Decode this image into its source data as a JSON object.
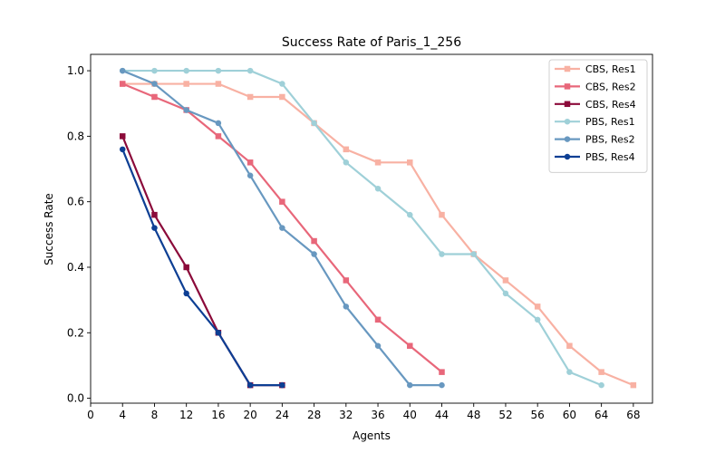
{
  "chart_data": {
    "type": "line",
    "title": "Success Rate of Paris_1_256",
    "xlabel": "Agents",
    "ylabel": "Success Rate",
    "xlim": [
      0,
      70.4
    ],
    "ylim": [
      -0.015,
      1.05
    ],
    "xticks": [
      0,
      4,
      8,
      12,
      16,
      20,
      24,
      28,
      32,
      36,
      40,
      44,
      48,
      52,
      56,
      60,
      64,
      68
    ],
    "yticks": [
      0.0,
      0.2,
      0.4,
      0.6,
      0.8,
      1.0
    ],
    "legend_position": "top-right",
    "grid": false,
    "series": [
      {
        "name": "CBS, Res1",
        "color": "#f8b1a3",
        "marker": "square",
        "x": [
          4,
          8,
          12,
          16,
          20,
          24,
          28,
          32,
          36,
          40,
          44,
          48,
          52,
          56,
          60,
          64,
          68
        ],
        "y": [
          0.96,
          0.96,
          0.96,
          0.96,
          0.92,
          0.92,
          0.84,
          0.76,
          0.72,
          0.72,
          0.56,
          0.44,
          0.36,
          0.28,
          0.16,
          0.08,
          0.04
        ]
      },
      {
        "name": "CBS, Res2",
        "color": "#e8677a",
        "marker": "square",
        "x": [
          4,
          8,
          12,
          16,
          20,
          24,
          28,
          32,
          36,
          40,
          44
        ],
        "y": [
          0.96,
          0.92,
          0.88,
          0.8,
          0.72,
          0.6,
          0.48,
          0.36,
          0.24,
          0.16,
          0.08
        ]
      },
      {
        "name": "CBS, Res4",
        "color": "#8b0a3a",
        "marker": "square",
        "x": [
          4,
          8,
          12,
          16,
          20,
          24
        ],
        "y": [
          0.8,
          0.56,
          0.4,
          0.2,
          0.04,
          0.04
        ]
      },
      {
        "name": "PBS, Res1",
        "color": "#9fd0d8",
        "marker": "circle",
        "x": [
          4,
          8,
          12,
          16,
          20,
          24,
          28,
          32,
          36,
          40,
          44,
          48,
          52,
          56,
          60,
          64
        ],
        "y": [
          1.0,
          1.0,
          1.0,
          1.0,
          1.0,
          0.96,
          0.84,
          0.72,
          0.64,
          0.56,
          0.44,
          0.44,
          0.32,
          0.24,
          0.08,
          0.04
        ]
      },
      {
        "name": "PBS, Res2",
        "color": "#6898c0",
        "marker": "circle",
        "x": [
          4,
          8,
          12,
          16,
          20,
          24,
          28,
          32,
          36,
          40,
          44
        ],
        "y": [
          1.0,
          0.96,
          0.88,
          0.84,
          0.68,
          0.52,
          0.44,
          0.28,
          0.16,
          0.04,
          0.04
        ]
      },
      {
        "name": "PBS, Res4",
        "color": "#0d3f94",
        "marker": "circle",
        "x": [
          4,
          8,
          12,
          16,
          20,
          24
        ],
        "y": [
          0.76,
          0.52,
          0.32,
          0.2,
          0.04,
          0.04
        ]
      }
    ]
  }
}
